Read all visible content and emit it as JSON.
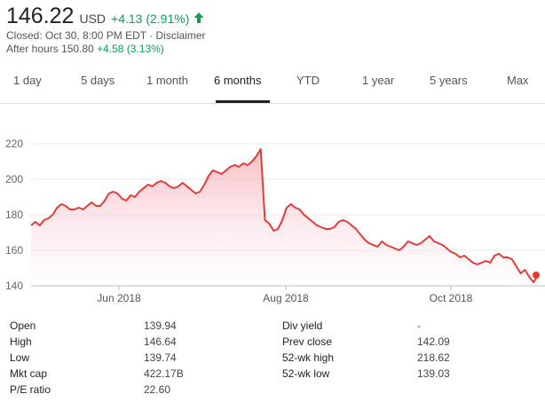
{
  "header": {
    "price": "146.22",
    "currency": "USD",
    "change": "+4.13 (2.91%)",
    "closed_line": "Closed: Oct 30, 8:00 PM EDT · Disclaimer",
    "after_hours_label": "After hours 150.80",
    "after_hours_change": "+4.58 (3.13%)",
    "arrow_icon": "up-arrow-icon",
    "up_color": "#0f9d58"
  },
  "tabs": [
    {
      "label": "1 day"
    },
    {
      "label": "5 days"
    },
    {
      "label": "1 month"
    },
    {
      "label": "6 months",
      "active": true
    },
    {
      "label": "YTD"
    },
    {
      "label": "1 year"
    },
    {
      "label": "5 years"
    },
    {
      "label": "Max"
    }
  ],
  "chart_data": {
    "type": "area",
    "line_color": "#e53935",
    "ylim": [
      140,
      222
    ],
    "y_ticks": [
      "220",
      "200",
      "180",
      "160",
      "140"
    ],
    "x_ticks": [
      "Jun 2018",
      "Aug 2018",
      "Oct 2018"
    ],
    "grid": true,
    "series": [
      {
        "values": [
          174,
          176,
          174,
          177,
          178,
          180,
          184,
          186,
          185,
          183,
          183,
          184,
          183,
          185,
          187,
          185,
          185,
          188,
          192,
          193,
          192,
          189,
          188,
          191,
          190,
          193,
          195,
          197,
          196,
          198,
          199,
          198,
          196,
          195,
          196,
          198,
          196,
          194,
          192,
          193,
          197,
          202,
          205,
          204,
          203,
          205,
          207,
          208,
          207,
          209,
          208,
          210,
          213,
          217,
          177,
          175,
          171,
          172,
          177,
          184,
          186,
          184,
          183,
          180,
          178,
          176,
          174,
          173,
          172,
          172,
          173,
          176,
          177,
          176,
          174,
          172,
          169,
          166,
          164,
          163,
          162,
          165,
          163,
          162,
          161,
          160,
          162,
          165,
          164,
          163,
          164,
          166,
          168,
          165,
          164,
          163,
          161,
          159,
          158,
          156,
          157,
          155,
          153,
          152,
          153,
          154,
          153,
          157,
          158,
          156,
          156,
          155,
          151,
          147,
          149,
          145,
          142,
          146
        ]
      }
    ]
  },
  "stats": {
    "left": [
      {
        "label": "Open",
        "value": "139.94"
      },
      {
        "label": "High",
        "value": "146.64"
      },
      {
        "label": "Low",
        "value": "139.74"
      },
      {
        "label": "Mkt cap",
        "value": "422.17B"
      },
      {
        "label": "P/E ratio",
        "value": "22.60"
      }
    ],
    "right": [
      {
        "label": "Div yield",
        "value": "-"
      },
      {
        "label": "Prev close",
        "value": "142.09"
      },
      {
        "label": "52-wk high",
        "value": "218.62"
      },
      {
        "label": "52-wk low",
        "value": "139.03"
      }
    ]
  }
}
